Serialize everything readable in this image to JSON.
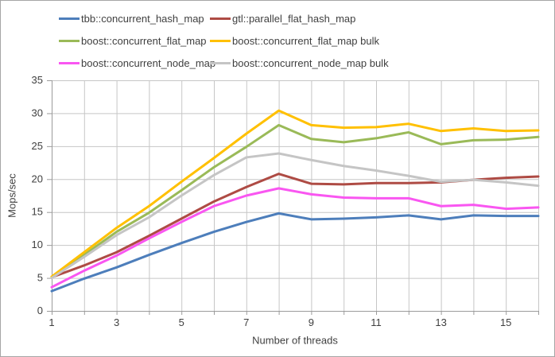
{
  "chart_data": {
    "type": "line",
    "title": "",
    "xlabel": "Number of threads",
    "ylabel": "Mops/sec",
    "x": [
      1,
      2,
      3,
      4,
      5,
      6,
      7,
      8,
      9,
      10,
      11,
      12,
      13,
      14,
      15,
      16
    ],
    "xlim": [
      1,
      16
    ],
    "ylim": [
      0,
      35
    ],
    "y_ticks": [
      0,
      5,
      10,
      15,
      20,
      25,
      30,
      35
    ],
    "x_tick_label_positions": [
      1,
      3,
      5,
      7,
      9,
      11,
      13,
      15
    ],
    "x_minor_tick_positions": [
      1,
      2,
      3,
      4,
      5,
      6,
      7,
      8,
      9,
      10,
      11,
      12,
      13,
      14,
      15,
      16
    ],
    "grid": "on",
    "legend_position": "top",
    "series": [
      {
        "name": "tbb::concurrent_hash_map",
        "color": "#4d7ebb",
        "values": [
          3.0,
          4.9,
          6.6,
          8.5,
          10.3,
          12.0,
          13.5,
          14.8,
          13.9,
          14.0,
          14.2,
          14.5,
          13.9,
          14.5,
          14.4,
          14.4
        ]
      },
      {
        "name": "gtl::parallel_flat_hash_map",
        "color": "#ae4b44",
        "values": [
          5.1,
          6.9,
          8.9,
          11.4,
          14.0,
          16.6,
          18.8,
          20.8,
          19.3,
          19.2,
          19.4,
          19.4,
          19.5,
          19.9,
          20.2,
          20.4
        ]
      },
      {
        "name": "boost::concurrent_flat_map",
        "color": "#9aba58",
        "values": [
          5.1,
          8.5,
          12.0,
          14.9,
          18.3,
          21.8,
          24.9,
          28.2,
          26.1,
          25.6,
          26.2,
          27.1,
          25.3,
          25.9,
          26.0,
          26.4
        ]
      },
      {
        "name": "boost::concurrent_flat_map bulk",
        "color": "#ffc000",
        "values": [
          5.2,
          8.9,
          12.6,
          15.9,
          19.6,
          23.2,
          26.9,
          30.4,
          28.2,
          27.8,
          27.9,
          28.4,
          27.3,
          27.7,
          27.3,
          27.4
        ]
      },
      {
        "name": "boost::concurrent_node_map",
        "color": "#f956f1",
        "values": [
          3.6,
          6.1,
          8.4,
          11.0,
          13.5,
          15.9,
          17.5,
          18.6,
          17.7,
          17.2,
          17.1,
          17.1,
          15.9,
          16.1,
          15.5,
          15.7
        ]
      },
      {
        "name": "boost::concurrent_node_map bulk",
        "color": "#c5c5c5",
        "values": [
          5.0,
          8.2,
          11.5,
          14.2,
          17.5,
          20.6,
          23.3,
          23.9,
          22.9,
          22.0,
          21.3,
          20.5,
          19.6,
          19.9,
          19.5,
          19.0
        ]
      }
    ]
  },
  "styles": {
    "background": "#ffffff",
    "frame_border_color": "#a6a6a6",
    "gridline_color": "#c6c6c6",
    "axis_color": "#9b9b9b",
    "text_color": "#3f3f3f",
    "series_line_width": 3
  }
}
